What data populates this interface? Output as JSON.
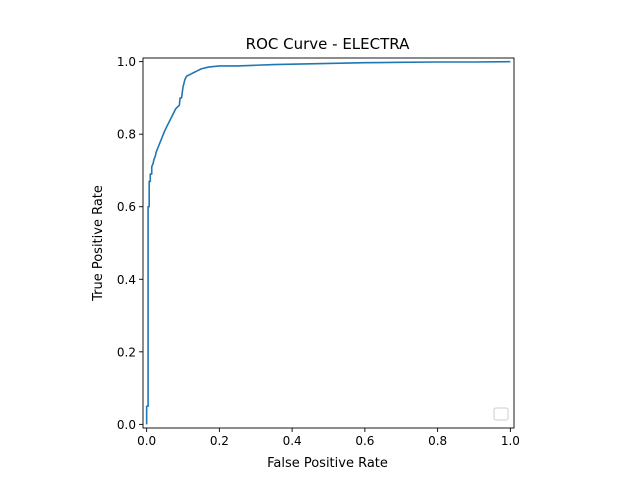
{
  "chart_data": {
    "type": "line",
    "title": "ROC Curve - ELECTRA",
    "xlabel": "False Positive Rate",
    "ylabel": "True Positive Rate",
    "xlim": [
      -0.01,
      1.01
    ],
    "ylim": [
      -0.01,
      1.01
    ],
    "xticks": [
      0.0,
      0.2,
      0.4,
      0.6,
      0.8,
      1.0
    ],
    "xtick_labels": [
      "0.0",
      "0.2",
      "0.4",
      "0.6",
      "0.8",
      "1.0"
    ],
    "yticks": [
      0.0,
      0.2,
      0.4,
      0.6,
      0.8,
      1.0
    ],
    "ytick_labels": [
      "0.0",
      "0.2",
      "0.4",
      "0.6",
      "0.8",
      "1.0"
    ],
    "grid": false,
    "legend": {
      "position": "lower right",
      "entries": []
    },
    "series": [
      {
        "color": "#1f77b4",
        "x": [
          0.0,
          0.0,
          0.004,
          0.004,
          0.007,
          0.007,
          0.01,
          0.01,
          0.014,
          0.014,
          0.018,
          0.02,
          0.024,
          0.026,
          0.03,
          0.034,
          0.038,
          0.042,
          0.046,
          0.05,
          0.055,
          0.06,
          0.065,
          0.07,
          0.075,
          0.08,
          0.085,
          0.09,
          0.092,
          0.096,
          0.1,
          0.105,
          0.11,
          0.12,
          0.13,
          0.14,
          0.15,
          0.17,
          0.2,
          0.25,
          0.3,
          0.35,
          0.4,
          0.5,
          0.6,
          0.7,
          0.8,
          0.9,
          1.0
        ],
        "y": [
          0.0,
          0.05,
          0.05,
          0.6,
          0.6,
          0.67,
          0.67,
          0.69,
          0.69,
          0.71,
          0.72,
          0.73,
          0.74,
          0.75,
          0.76,
          0.77,
          0.78,
          0.79,
          0.8,
          0.81,
          0.82,
          0.83,
          0.84,
          0.85,
          0.86,
          0.87,
          0.875,
          0.88,
          0.9,
          0.9,
          0.93,
          0.95,
          0.96,
          0.965,
          0.97,
          0.975,
          0.98,
          0.985,
          0.988,
          0.988,
          0.99,
          0.992,
          0.993,
          0.995,
          0.997,
          0.998,
          0.999,
          0.999,
          1.0
        ]
      }
    ]
  }
}
